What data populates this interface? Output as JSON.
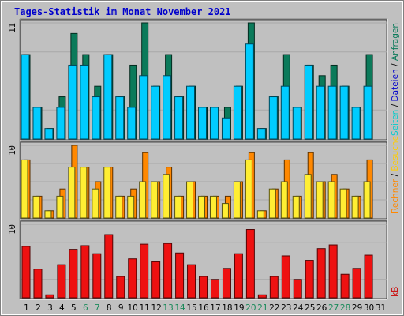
{
  "chart_data": {
    "type": "bar",
    "title": "Tages-Statistik im Monat November 2021",
    "categories": [
      "1",
      "2",
      "3",
      "4",
      "5",
      "6",
      "7",
      "8",
      "9",
      "10",
      "11",
      "12",
      "13",
      "14",
      "15",
      "16",
      "17",
      "18",
      "19",
      "20",
      "21",
      "22",
      "23",
      "24",
      "25",
      "26",
      "27",
      "28",
      "29",
      "30",
      "31"
    ],
    "weekend_days": [
      "6",
      "7",
      "13",
      "14",
      "20",
      "21",
      "27",
      "28"
    ],
    "panels": [
      {
        "id": "requests",
        "ymax_label": "11",
        "ylim": [
          0,
          11
        ],
        "series": [
          {
            "name": "Anfragen",
            "color": "#0b7a5a",
            "values": [
              8,
              3,
              1,
              4,
              10,
              8,
              5,
              8,
              4,
              7,
              11,
              5,
              8,
              4,
              5,
              3,
              3,
              3,
              5,
              11,
              1,
              4,
              8,
              3,
              7,
              6,
              7,
              5,
              3,
              8,
              0
            ]
          },
          {
            "name": "Dateien",
            "color": "#00ccff",
            "values": [
              8,
              3,
              1,
              3,
              7,
              7,
              4,
              8,
              4,
              3,
              6,
              5,
              6,
              4,
              5,
              3,
              3,
              2,
              5,
              9,
              1,
              4,
              5,
              3,
              7,
              5,
              5,
              5,
              3,
              5,
              0
            ]
          },
          {
            "name": "Seiten",
            "color": "#00e0e0",
            "values": [
              8,
              3,
              1,
              3,
              7,
              7,
              4,
              8,
              4,
              3,
              6,
              5,
              6,
              4,
              5,
              3,
              3,
              2,
              5,
              9,
              1,
              4,
              5,
              3,
              7,
              5,
              5,
              5,
              3,
              5,
              0
            ]
          }
        ]
      },
      {
        "id": "visits",
        "ymax_label": "10",
        "ylim": [
          0,
          10
        ],
        "series": [
          {
            "name": "Rechner",
            "color": "#ff8800",
            "values": [
              8,
              3,
              1,
              4,
              10,
              7,
              5,
              7,
              3,
              4,
              9,
              5,
              7,
              3,
              5,
              3,
              3,
              3,
              5,
              9,
              1,
              4,
              8,
              3,
              9,
              5,
              6,
              4,
              3,
              8,
              0
            ]
          },
          {
            "name": "Besuche",
            "color": "#ffee33",
            "values": [
              8,
              3,
              1,
              3,
              7,
              7,
              4,
              7,
              3,
              3,
              5,
              5,
              6,
              3,
              5,
              3,
              3,
              2,
              5,
              8,
              1,
              4,
              5,
              3,
              6,
              5,
              5,
              4,
              3,
              5,
              0
            ]
          }
        ]
      },
      {
        "id": "kbytes",
        "ymax_label": "10",
        "ylim": [
          0,
          10
        ],
        "series": [
          {
            "name": "kB",
            "color": "#ee1111",
            "values": [
              7,
              3.9,
              0.4,
              4.5,
              6.6,
              7.1,
              6,
              8.6,
              2.9,
              5.3,
              7.3,
              4.9,
              7.4,
              6.1,
              4.5,
              2.9,
              2.5,
              4,
              6,
              9.3,
              0.4,
              2.9,
              5.7,
              2.5,
              5.1,
              6.7,
              7.2,
              3.2,
              4,
              5.8,
              0
            ]
          }
        ]
      }
    ],
    "legend": [
      {
        "text": "Rechner",
        "color": "#ff8800"
      },
      {
        "text": " / ",
        "color": "#000000"
      },
      {
        "text": "Besuche",
        "color": "#ffcc00"
      },
      {
        "text": "Seiten",
        "color": "#00cccc"
      },
      {
        "text": " / ",
        "color": "#000000"
      },
      {
        "text": "Dateien",
        "color": "#0000cc"
      },
      {
        "text": " / ",
        "color": "#000000"
      },
      {
        "text": "Anfragen",
        "color": "#0b7a5a"
      }
    ],
    "legend_kb": {
      "text": "kB",
      "color": "#cc0000"
    },
    "colors": {
      "background": "#c0c0c0",
      "title": "#0000cc",
      "weekday_label": "#000000",
      "weekend_label": "#1a8a5a"
    }
  }
}
